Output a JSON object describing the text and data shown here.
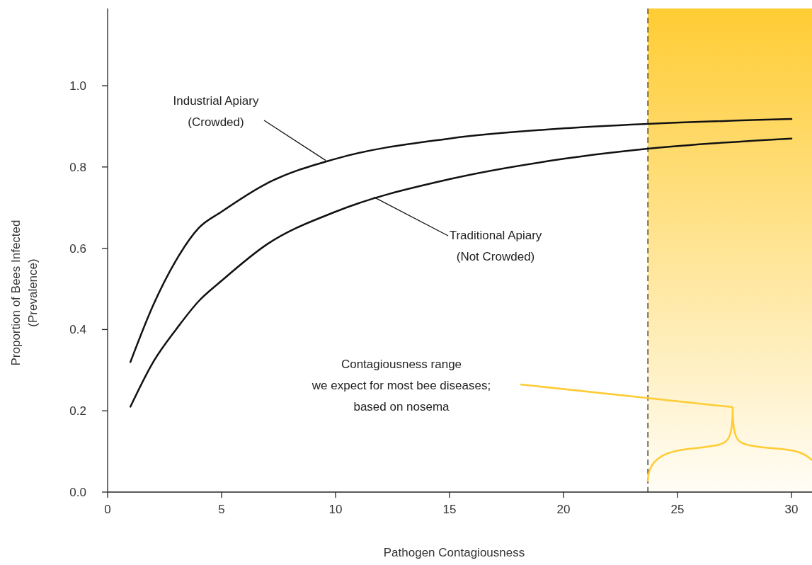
{
  "chart_data": {
    "type": "line",
    "xlabel": "Pathogen Contagiousness",
    "ylabel": "Proportion of Bees Infected\n(Prevalence)",
    "xlim": [
      0,
      30.9
    ],
    "ylim": [
      0,
      1.19
    ],
    "xticks": [
      0,
      5,
      10,
      15,
      20,
      25,
      30
    ],
    "yticks": [
      {
        "value": 0,
        "label": "0.0"
      },
      {
        "value": 0.2,
        "label": "0.2"
      },
      {
        "value": 0.4,
        "label": "0.4"
      },
      {
        "value": 0.6,
        "label": "0.6"
      },
      {
        "value": 0.8,
        "label": "0.8"
      },
      {
        "value": 1,
        "label": "1.0"
      }
    ],
    "grid": false,
    "marker": "none",
    "line_style": "solid",
    "series": [
      {
        "color": "#111111",
        "x": [
          1,
          2,
          3,
          4,
          5,
          7,
          10,
          15,
          20,
          23.7,
          30
        ],
        "values": [
          0.32,
          0.46,
          0.57,
          0.65,
          0.69,
          0.76,
          0.82,
          0.87,
          0.895,
          0.906,
          0.918
        ]
      },
      {
        "color": "#111111",
        "x": [
          1,
          2,
          3,
          4,
          5,
          7,
          10,
          15,
          20,
          23.7,
          30
        ],
        "values": [
          0.21,
          0.32,
          0.4,
          0.47,
          0.52,
          0.61,
          0.69,
          0.77,
          0.82,
          0.845,
          0.87
        ]
      }
    ],
    "bands": [
      {
        "axis": "x",
        "from": 23.7,
        "to": 30.9,
        "color": "#ffcc33"
      }
    ],
    "ref_lines": [
      {
        "axis": "x",
        "value": 23.7,
        "line_style": "dashed",
        "color": "#222222"
      }
    ],
    "annotations": [
      {
        "text": "Industrial Apiary\n(Crowded)",
        "x": 9.57,
        "y": 0.816
      },
      {
        "text": "Traditional Apiary\n(Not Crowded)",
        "x": 11.68,
        "y": 0.726
      },
      "Contagiousness range\nwe expect for most bee diseases;\nbased on nosema"
    ]
  }
}
